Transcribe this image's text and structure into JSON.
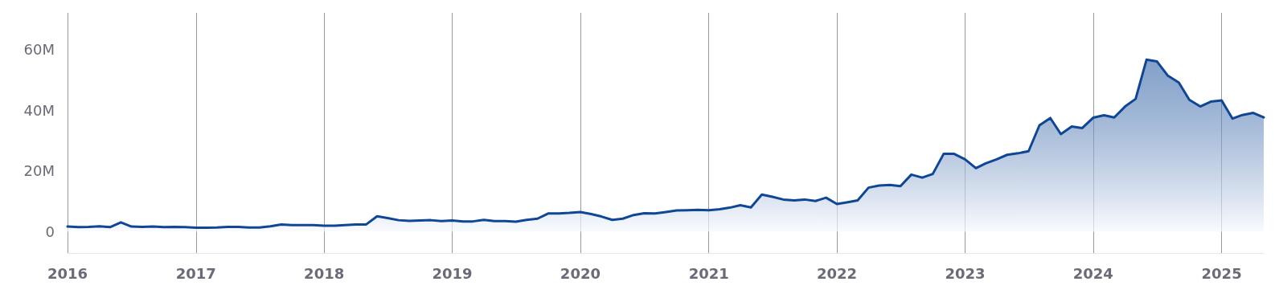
{
  "chart_data": {
    "type": "area",
    "x": [
      "2016-01",
      "2016-02",
      "2016-03",
      "2016-04",
      "2016-05",
      "2016-06",
      "2016-07",
      "2016-08",
      "2016-09",
      "2016-10",
      "2016-11",
      "2016-12",
      "2017-01",
      "2017-02",
      "2017-03",
      "2017-04",
      "2017-05",
      "2017-06",
      "2017-07",
      "2017-08",
      "2017-09",
      "2017-10",
      "2017-11",
      "2017-12",
      "2018-01",
      "2018-02",
      "2018-03",
      "2018-04",
      "2018-05",
      "2018-06",
      "2018-07",
      "2018-08",
      "2018-09",
      "2018-10",
      "2018-11",
      "2018-12",
      "2019-01",
      "2019-02",
      "2019-03",
      "2019-04",
      "2019-05",
      "2019-06",
      "2019-07",
      "2019-08",
      "2019-09",
      "2019-10",
      "2019-11",
      "2019-12",
      "2020-01",
      "2020-02",
      "2020-03",
      "2020-04",
      "2020-05",
      "2020-06",
      "2020-07",
      "2020-08",
      "2020-09",
      "2020-10",
      "2020-11",
      "2020-12",
      "2021-01",
      "2021-02",
      "2021-03",
      "2021-04",
      "2021-05",
      "2021-06",
      "2021-07",
      "2021-08",
      "2021-09",
      "2021-10",
      "2021-11",
      "2021-12",
      "2022-01",
      "2022-02",
      "2022-03",
      "2022-04",
      "2022-05",
      "2022-06",
      "2022-07",
      "2022-08",
      "2022-09",
      "2022-10",
      "2022-11",
      "2022-12",
      "2023-01",
      "2023-02",
      "2023-03",
      "2023-04",
      "2023-05",
      "2023-06",
      "2023-07",
      "2023-08",
      "2023-09",
      "2023-10",
      "2023-11",
      "2023-12",
      "2024-01",
      "2024-02",
      "2024-03",
      "2024-04",
      "2024-05",
      "2024-06",
      "2024-07",
      "2024-08",
      "2024-09",
      "2024-10",
      "2024-11",
      "2024-12",
      "2025-01",
      "2025-02",
      "2025-03",
      "2025-04",
      "2025-05"
    ],
    "series": [
      {
        "color": "#0f4796",
        "values": [
          1.7,
          1.5,
          1.6,
          1.8,
          1.5,
          3.1,
          1.7,
          1.6,
          1.7,
          1.5,
          1.6,
          1.5,
          1.3,
          1.3,
          1.4,
          1.6,
          1.6,
          1.4,
          1.4,
          1.8,
          2.4,
          2.2,
          2.2,
          2.2,
          2.0,
          2.0,
          2.2,
          2.4,
          2.4,
          5.1,
          4.5,
          3.8,
          3.6,
          3.7,
          3.8,
          3.5,
          3.7,
          3.4,
          3.4,
          3.9,
          3.5,
          3.5,
          3.3,
          3.9,
          4.3,
          6.0,
          6.0,
          6.2,
          6.5,
          5.8,
          5.0,
          3.9,
          4.3,
          5.5,
          6.1,
          6.0,
          6.5,
          7.0,
          7.1,
          7.2,
          7.1,
          7.4,
          7.9,
          8.7,
          8.0,
          12.2,
          11.5,
          10.6,
          10.3,
          10.6,
          10.1,
          11.2,
          9.1,
          9.7,
          10.3,
          14.5,
          15.2,
          15.4,
          15.0,
          18.8,
          17.8,
          19.0,
          25.6,
          25.6,
          23.8,
          20.9,
          22.5,
          23.8,
          25.3,
          25.8,
          26.5,
          35.0,
          37.4,
          32.1,
          34.6,
          34.1,
          37.5,
          38.3,
          37.6,
          41.2,
          43.7,
          56.6,
          56.0,
          51.3,
          49.1,
          43.4,
          41.2,
          42.8,
          43.2,
          37.2,
          38.4,
          39.1,
          37.6
        ]
      }
    ],
    "xlim": [
      "2016-01",
      "2025-05"
    ],
    "xticks": [
      {
        "value": "2016",
        "label": "2016"
      },
      {
        "value": "2017",
        "label": "2017"
      },
      {
        "value": "2018",
        "label": "2018"
      },
      {
        "value": "2019",
        "label": "2019"
      },
      {
        "value": "2020",
        "label": "2020"
      },
      {
        "value": "2021",
        "label": "2021"
      },
      {
        "value": "2022",
        "label": "2022"
      },
      {
        "value": "2023",
        "label": "2023"
      },
      {
        "value": "2024",
        "label": "2024"
      },
      {
        "value": "2025",
        "label": "2025"
      }
    ],
    "ylim": [
      -7,
      72
    ],
    "yticks": [
      0,
      {
        "value": 20,
        "label": "20M"
      },
      {
        "value": 40,
        "label": "40M"
      },
      {
        "value": 60,
        "label": "60M"
      }
    ],
    "grid": "x",
    "marker": "none",
    "line_style": "solid"
  }
}
